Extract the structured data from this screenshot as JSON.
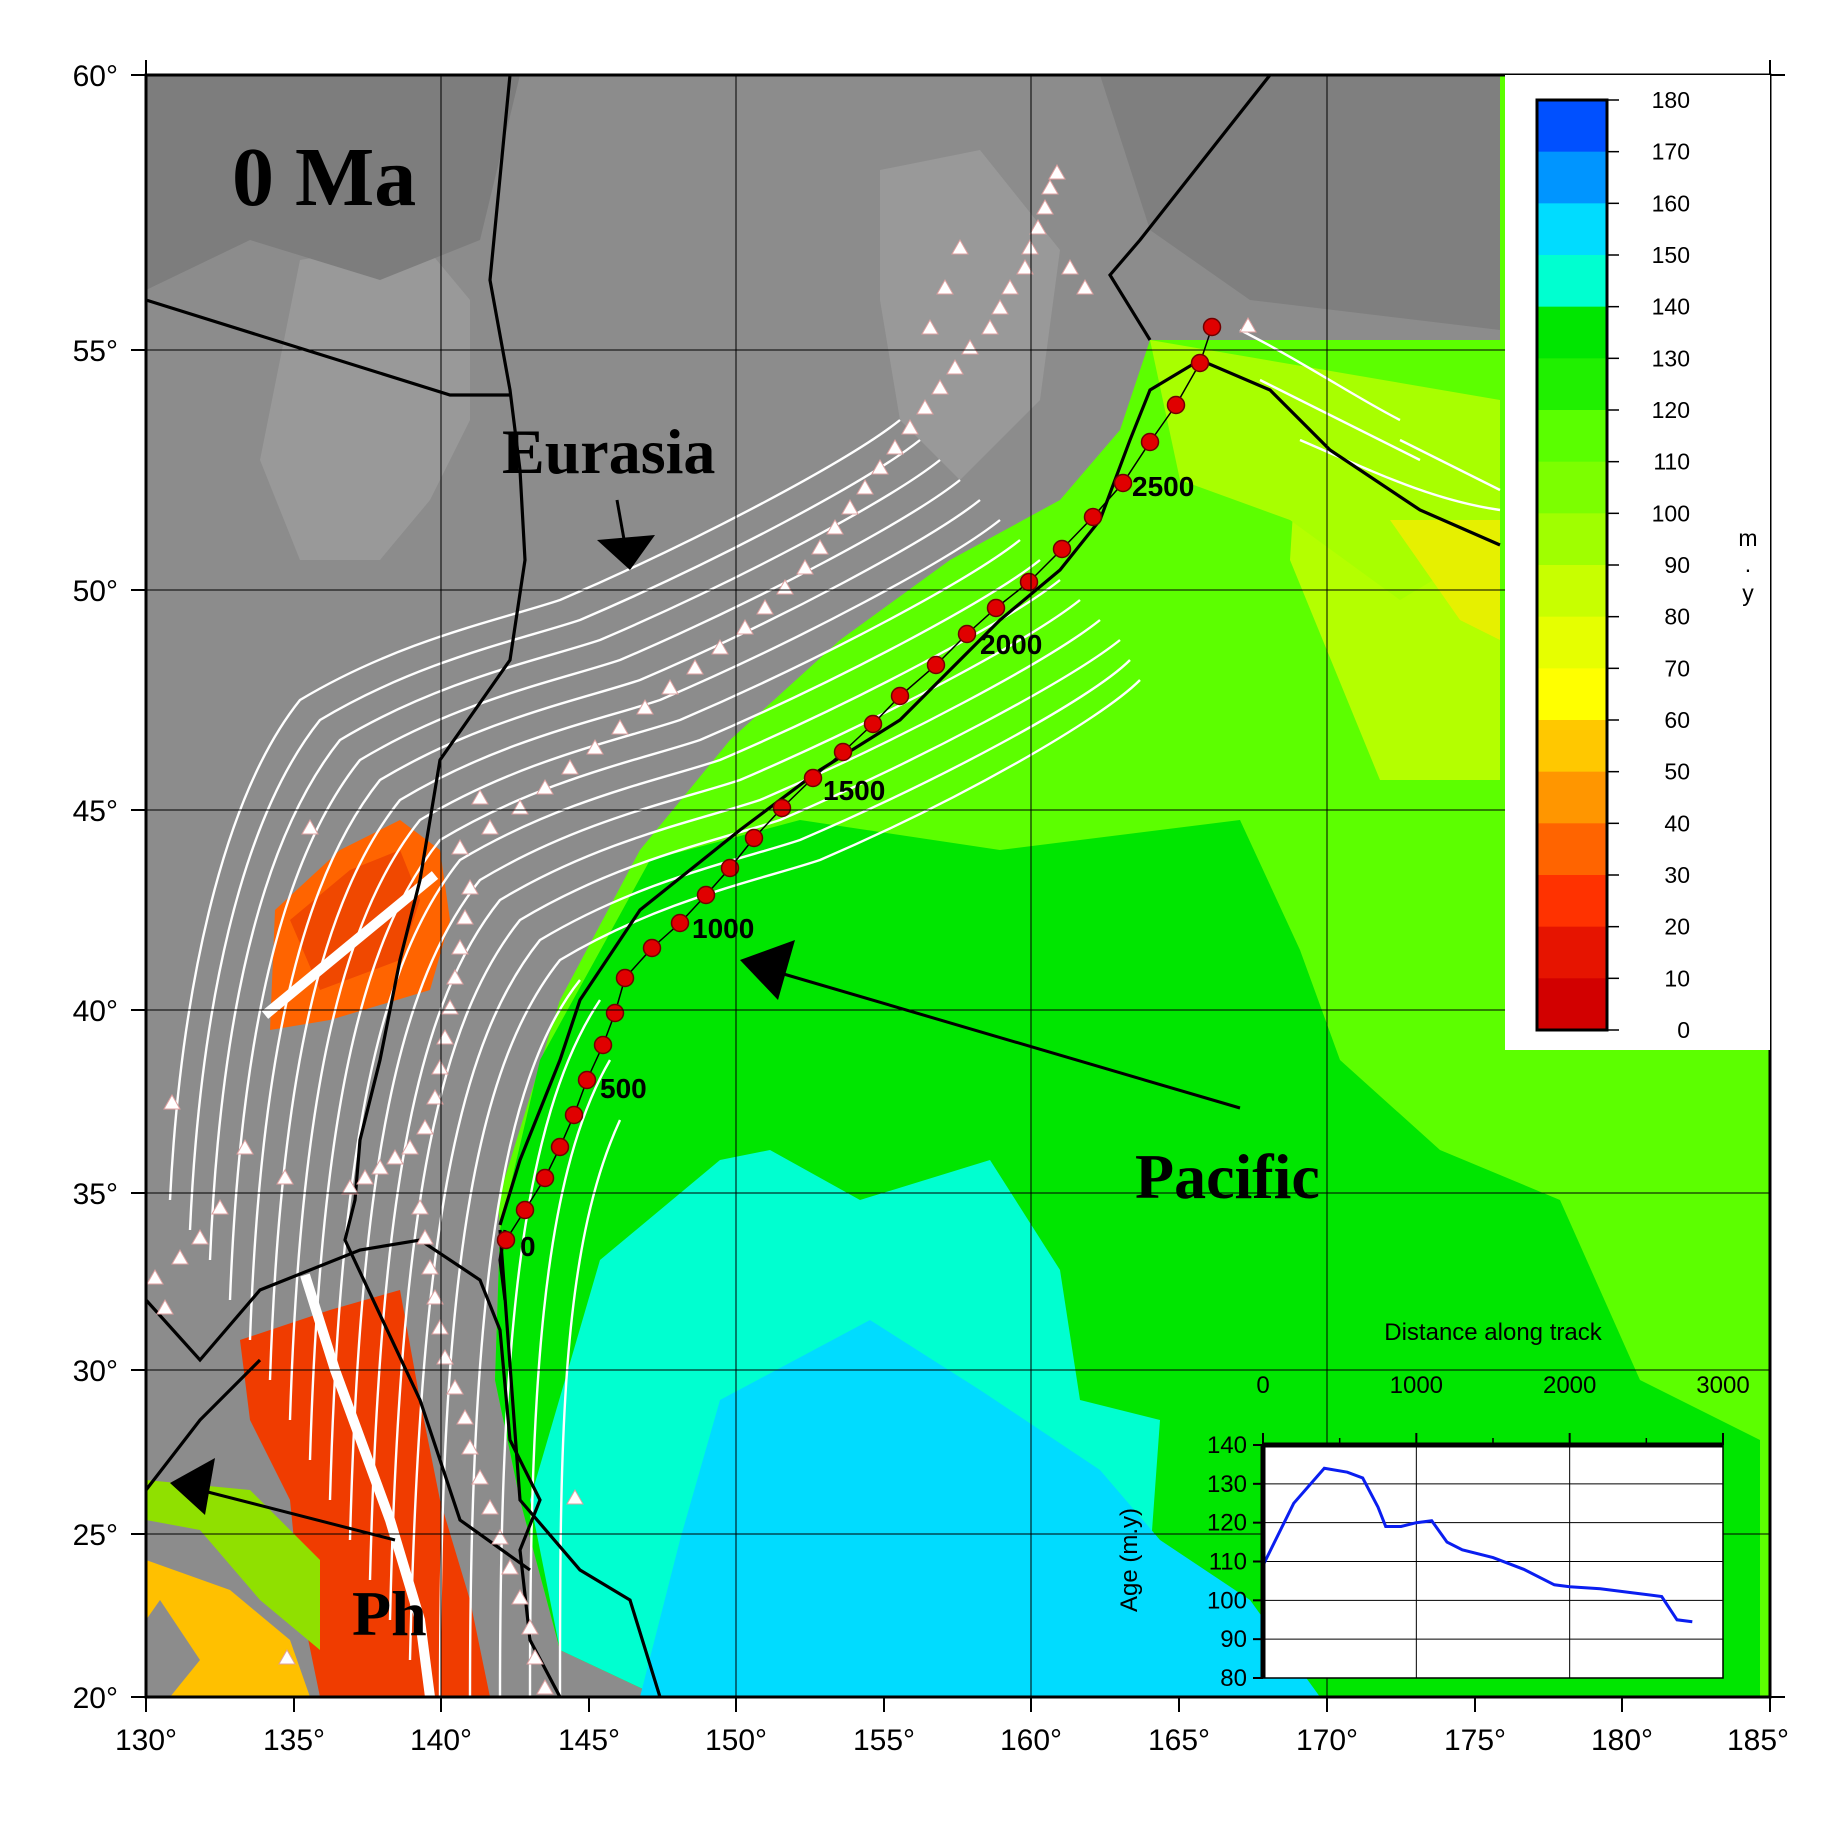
{
  "map": {
    "age_label": "0 Ma",
    "plates": {
      "eurasia": "Eurasia",
      "pacific": "Pacific",
      "philippine": "Ph"
    },
    "lon_ticks": [
      "130°",
      "135°",
      "140°",
      "145°",
      "150°",
      "155°",
      "160°",
      "165°",
      "170°",
      "175°",
      "180°",
      "185°"
    ],
    "lat_ticks": [
      "60°",
      "55°",
      "50°",
      "45°",
      "40°",
      "35°",
      "30°",
      "25°",
      "20°"
    ],
    "track_labels": [
      "0",
      "500",
      "1000",
      "1500",
      "2000",
      "2500"
    ]
  },
  "legend": {
    "unit": [
      "m",
      ".",
      "y"
    ],
    "values": [
      "180",
      "170",
      "160",
      "150",
      "140",
      "130",
      "120",
      "110",
      "100",
      "90",
      "80",
      "70",
      "60",
      "50",
      "40",
      "30",
      "20",
      "10",
      "0"
    ],
    "colors": [
      "#0050ff",
      "#0095ff",
      "#00dcff",
      "#00ffd0",
      "#00e600",
      "#20f000",
      "#5aff00",
      "#7cff00",
      "#a0ff00",
      "#c8ff00",
      "#e6ff00",
      "#ffff00",
      "#ffc800",
      "#ff9600",
      "#ff6400",
      "#ff3200",
      "#e61400",
      "#d20000"
    ]
  },
  "chart_data": {
    "type": "line",
    "title": "Distance along track",
    "xlabel": "",
    "ylabel": "Age (m.y)",
    "xlim": [
      0,
      3000
    ],
    "ylim": [
      80,
      140
    ],
    "x_ticks": [
      "0",
      "1000",
      "2000",
      "3000"
    ],
    "y_ticks": [
      "140",
      "130",
      "120",
      "110",
      "100",
      "90",
      "80"
    ],
    "series": [
      {
        "x": [
          0,
          200,
          400,
          550,
          650,
          750,
          800,
          900,
          1000,
          1100,
          1200,
          1300,
          1500,
          1700,
          1900,
          2000,
          2200,
          2400,
          2600,
          2700,
          2800
        ],
        "y": [
          109,
          125,
          134,
          133,
          131.5,
          124,
          119,
          119,
          120,
          120.5,
          115,
          113,
          111,
          108,
          104,
          103.5,
          103,
          102,
          101,
          95,
          94.5
        ],
        "color": "#0a1ef0"
      }
    ]
  }
}
